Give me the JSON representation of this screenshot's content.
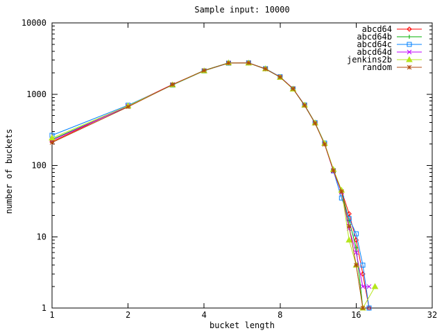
{
  "chart_data": {
    "type": "line",
    "title": "Sample input: 10000",
    "xlabel": "bucket length",
    "ylabel": "number of buckets",
    "x_scale": "log2",
    "y_scale": "log10",
    "xlim": [
      1,
      32
    ],
    "ylim": [
      1,
      10000
    ],
    "x_ticks": [
      1,
      2,
      4,
      8,
      16,
      32
    ],
    "y_ticks": [
      1,
      10,
      100,
      1000,
      10000
    ],
    "grid": false,
    "legend_position": "top-right-inside",
    "series": [
      {
        "name": "abcd64",
        "color": "#ff0000",
        "marker": "diamond",
        "points": [
          [
            1,
            215
          ],
          [
            2,
            690
          ],
          [
            3,
            1370
          ],
          [
            4,
            2140
          ],
          [
            5,
            2740
          ],
          [
            6,
            2745
          ],
          [
            7,
            2270
          ],
          [
            8,
            1745
          ],
          [
            9,
            1200
          ],
          [
            10,
            700
          ],
          [
            11,
            395
          ],
          [
            12,
            203
          ],
          [
            13,
            86
          ],
          [
            14,
            44
          ],
          [
            15,
            21
          ],
          [
            16,
            9
          ],
          [
            17,
            3
          ],
          [
            18,
            1
          ]
        ]
      },
      {
        "name": "abcd64b",
        "color": "#00b000",
        "marker": "plus",
        "points": [
          [
            1,
            232
          ],
          [
            2,
            672
          ],
          [
            3,
            1355
          ],
          [
            4,
            2155
          ],
          [
            5,
            2755
          ],
          [
            6,
            2730
          ],
          [
            7,
            2250
          ],
          [
            8,
            1730
          ],
          [
            9,
            1185
          ],
          [
            10,
            692
          ],
          [
            11,
            390
          ],
          [
            12,
            200
          ],
          [
            13,
            87
          ],
          [
            14,
            43
          ],
          [
            15,
            17
          ],
          [
            16,
            7
          ],
          [
            17,
            1
          ]
        ]
      },
      {
        "name": "abcd64c",
        "color": "#0080ff",
        "marker": "square",
        "points": [
          [
            1,
            265
          ],
          [
            2,
            700
          ],
          [
            3,
            1340
          ],
          [
            4,
            2120
          ],
          [
            5,
            2725
          ],
          [
            6,
            2750
          ],
          [
            7,
            2280
          ],
          [
            8,
            1755
          ],
          [
            9,
            1190
          ],
          [
            10,
            706
          ],
          [
            11,
            398
          ],
          [
            12,
            206
          ],
          [
            13,
            84
          ],
          [
            14,
            35
          ],
          [
            15,
            18
          ],
          [
            16,
            11
          ],
          [
            17,
            4
          ],
          [
            18,
            1
          ]
        ]
      },
      {
        "name": "abcd64d",
        "color": "#bf00ff",
        "marker": "x",
        "points": [
          [
            1,
            225
          ],
          [
            2,
            680
          ],
          [
            3,
            1360
          ],
          [
            4,
            2135
          ],
          [
            5,
            2745
          ],
          [
            6,
            2740
          ],
          [
            7,
            2260
          ],
          [
            8,
            1740
          ],
          [
            9,
            1195
          ],
          [
            10,
            696
          ],
          [
            11,
            392
          ],
          [
            12,
            199
          ],
          [
            13,
            83
          ],
          [
            14,
            42
          ],
          [
            15,
            13
          ],
          [
            16,
            6
          ],
          [
            17,
            2
          ],
          [
            18,
            2
          ]
        ]
      },
      {
        "name": "jenkins2b",
        "color": "#b5e61d",
        "marker": "triangle",
        "points": [
          [
            1,
            243
          ],
          [
            2,
            686
          ],
          [
            3,
            1348
          ],
          [
            4,
            2125
          ],
          [
            5,
            2750
          ],
          [
            6,
            2735
          ],
          [
            7,
            2275
          ],
          [
            8,
            1720
          ],
          [
            9,
            1180
          ],
          [
            10,
            702
          ],
          [
            11,
            396
          ],
          [
            12,
            204
          ],
          [
            13,
            88
          ],
          [
            14,
            45
          ],
          [
            15,
            9
          ],
          [
            16,
            4
          ],
          [
            17,
            1
          ],
          [
            19,
            2
          ]
        ]
      },
      {
        "name": "random",
        "color": "#b04a0e",
        "marker": "asterisk",
        "points": [
          [
            1,
            210
          ],
          [
            2,
            665
          ],
          [
            3,
            1365
          ],
          [
            4,
            2145
          ],
          [
            5,
            2735
          ],
          [
            6,
            2748
          ],
          [
            7,
            2265
          ],
          [
            8,
            1738
          ],
          [
            9,
            1192
          ],
          [
            10,
            698
          ],
          [
            11,
            391
          ],
          [
            12,
            198
          ],
          [
            13,
            85
          ],
          [
            14,
            43
          ],
          [
            15,
            14
          ],
          [
            16,
            4
          ],
          [
            17,
            1
          ]
        ]
      }
    ]
  }
}
